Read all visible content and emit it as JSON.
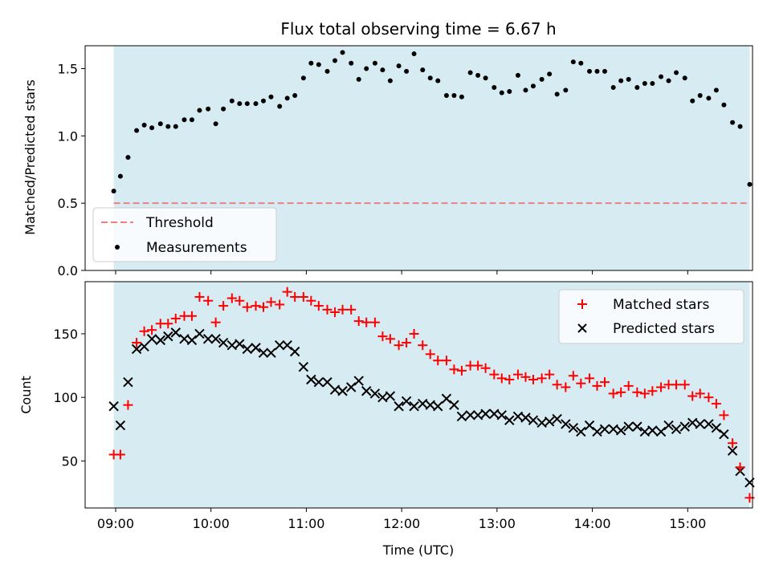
{
  "chart_data": {
    "title": "Flux total observing time = 6.67 h",
    "xlabel": "Time (UTC)",
    "xticks": [
      "09:00",
      "10:00",
      "11:00",
      "12:00",
      "13:00",
      "14:00",
      "15:00"
    ],
    "x_hours_range": [
      8.68,
      15.68
    ],
    "shaded_span_hours": [
      8.98,
      15.65
    ],
    "colors": {
      "shade": "#add8e6",
      "threshold": "#f08080",
      "measurements": "#000000",
      "matched": "#ff0000",
      "predicted": "#000000"
    },
    "top": {
      "type": "scatter",
      "ylabel": "Matched/Predicted stars",
      "ylim": [
        0,
        1.67
      ],
      "yticks": [
        "0.0",
        "0.5",
        "1.0",
        "1.5"
      ],
      "threshold": 0.5,
      "legend": {
        "placement": "lower-left",
        "threshold_label": "Threshold",
        "measurements_label": "Measurements"
      },
      "x_hours": [
        8.98,
        9.05,
        9.13,
        9.22,
        9.3,
        9.38,
        9.47,
        9.55,
        9.63,
        9.72,
        9.8,
        9.88,
        9.97,
        10.05,
        10.13,
        10.22,
        10.3,
        10.38,
        10.47,
        10.55,
        10.63,
        10.72,
        10.8,
        10.88,
        10.97,
        11.05,
        11.13,
        11.22,
        11.3,
        11.38,
        11.47,
        11.55,
        11.63,
        11.72,
        11.8,
        11.88,
        11.97,
        12.05,
        12.13,
        12.22,
        12.3,
        12.38,
        12.47,
        12.55,
        12.63,
        12.72,
        12.8,
        12.88,
        12.97,
        13.05,
        13.13,
        13.22,
        13.3,
        13.38,
        13.47,
        13.55,
        13.63,
        13.72,
        13.8,
        13.88,
        13.97,
        14.05,
        14.13,
        14.22,
        14.3,
        14.38,
        14.47,
        14.55,
        14.63,
        14.72,
        14.8,
        14.88,
        14.97,
        15.05,
        15.13,
        15.22,
        15.3,
        15.38,
        15.47,
        15.55,
        15.65
      ],
      "y": [
        0.59,
        0.7,
        0.84,
        1.04,
        1.08,
        1.06,
        1.09,
        1.07,
        1.07,
        1.12,
        1.12,
        1.19,
        1.2,
        1.09,
        1.2,
        1.26,
        1.24,
        1.24,
        1.24,
        1.26,
        1.29,
        1.22,
        1.28,
        1.3,
        1.43,
        1.54,
        1.53,
        1.48,
        1.56,
        1.62,
        1.54,
        1.42,
        1.5,
        1.54,
        1.49,
        1.41,
        1.52,
        1.48,
        1.61,
        1.49,
        1.43,
        1.41,
        1.3,
        1.3,
        1.29,
        1.47,
        1.45,
        1.43,
        1.36,
        1.32,
        1.33,
        1.45,
        1.34,
        1.37,
        1.42,
        1.46,
        1.31,
        1.34,
        1.55,
        1.54,
        1.48,
        1.48,
        1.48,
        1.36,
        1.41,
        1.42,
        1.36,
        1.39,
        1.39,
        1.44,
        1.41,
        1.47,
        1.43,
        1.26,
        1.3,
        1.28,
        1.34,
        1.23,
        1.1,
        1.07,
        0.64
      ]
    },
    "bottom": {
      "type": "scatter",
      "ylabel": "Count",
      "ylim": [
        13,
        191
      ],
      "yticks": [
        "50",
        "100",
        "150"
      ],
      "legend": {
        "placement": "upper-right",
        "matched_label": "Matched stars",
        "predicted_label": "Predicted stars"
      },
      "series": [
        {
          "name": "Matched stars",
          "x_hours": [
            8.98,
            9.05,
            9.13,
            9.22,
            9.3,
            9.38,
            9.47,
            9.55,
            9.63,
            9.72,
            9.8,
            9.88,
            9.97,
            10.05,
            10.13,
            10.22,
            10.3,
            10.38,
            10.47,
            10.55,
            10.63,
            10.72,
            10.8,
            10.88,
            10.97,
            11.05,
            11.13,
            11.22,
            11.3,
            11.38,
            11.47,
            11.55,
            11.63,
            11.72,
            11.8,
            11.88,
            11.97,
            12.05,
            12.13,
            12.22,
            12.3,
            12.38,
            12.47,
            12.55,
            12.63,
            12.72,
            12.8,
            12.88,
            12.97,
            13.05,
            13.13,
            13.22,
            13.3,
            13.38,
            13.47,
            13.55,
            13.63,
            13.72,
            13.8,
            13.88,
            13.97,
            14.05,
            14.13,
            14.22,
            14.3,
            14.38,
            14.47,
            14.55,
            14.63,
            14.72,
            14.8,
            14.88,
            14.97,
            15.05,
            15.13,
            15.22,
            15.3,
            15.38,
            15.47,
            15.55,
            15.65
          ],
          "y": [
            55,
            55,
            94,
            143,
            152,
            153,
            158,
            158,
            162,
            164,
            164,
            179,
            176,
            159,
            172,
            178,
            176,
            171,
            172,
            171,
            175,
            173,
            183,
            179,
            179,
            176,
            172,
            169,
            167,
            169,
            169,
            160,
            159,
            159,
            148,
            146,
            141,
            143,
            150,
            141,
            134,
            129,
            129,
            122,
            121,
            125,
            125,
            123,
            118,
            115,
            114,
            118,
            116,
            114,
            115,
            118,
            110,
            108,
            117,
            111,
            115,
            109,
            112,
            103,
            104,
            109,
            104,
            103,
            105,
            108,
            110,
            110,
            110,
            101,
            103,
            100,
            95,
            86,
            64,
            45,
            21
          ]
        },
        {
          "name": "Predicted stars",
          "x_hours": [
            8.98,
            9.05,
            9.13,
            9.22,
            9.3,
            9.38,
            9.47,
            9.55,
            9.63,
            9.72,
            9.8,
            9.88,
            9.97,
            10.05,
            10.13,
            10.22,
            10.3,
            10.38,
            10.47,
            10.55,
            10.63,
            10.72,
            10.8,
            10.88,
            10.97,
            11.05,
            11.13,
            11.22,
            11.3,
            11.38,
            11.47,
            11.55,
            11.63,
            11.72,
            11.8,
            11.88,
            11.97,
            12.05,
            12.13,
            12.22,
            12.3,
            12.38,
            12.47,
            12.55,
            12.63,
            12.72,
            12.8,
            12.88,
            12.97,
            13.05,
            13.13,
            13.22,
            13.3,
            13.38,
            13.47,
            13.55,
            13.63,
            13.72,
            13.8,
            13.88,
            13.97,
            14.05,
            14.13,
            14.22,
            14.3,
            14.38,
            14.47,
            14.55,
            14.63,
            14.72,
            14.8,
            14.88,
            14.97,
            15.05,
            15.13,
            15.22,
            15.3,
            15.38,
            15.47,
            15.55,
            15.65
          ],
          "y": [
            93,
            78,
            112,
            138,
            140,
            146,
            145,
            148,
            151,
            146,
            145,
            150,
            146,
            146,
            143,
            141,
            142,
            138,
            139,
            135,
            135,
            141,
            141,
            136,
            124,
            114,
            112,
            112,
            106,
            105,
            108,
            113,
            105,
            103,
            100,
            101,
            93,
            97,
            93,
            95,
            94,
            93,
            99,
            94,
            85,
            86,
            86,
            87,
            87,
            86,
            82,
            85,
            84,
            82,
            80,
            81,
            83,
            79,
            76,
            73,
            78,
            73,
            75,
            75,
            74,
            77,
            77,
            73,
            74,
            73,
            78,
            75,
            77,
            80,
            79,
            79,
            76,
            71,
            58,
            42,
            33
          ]
        }
      ]
    }
  }
}
